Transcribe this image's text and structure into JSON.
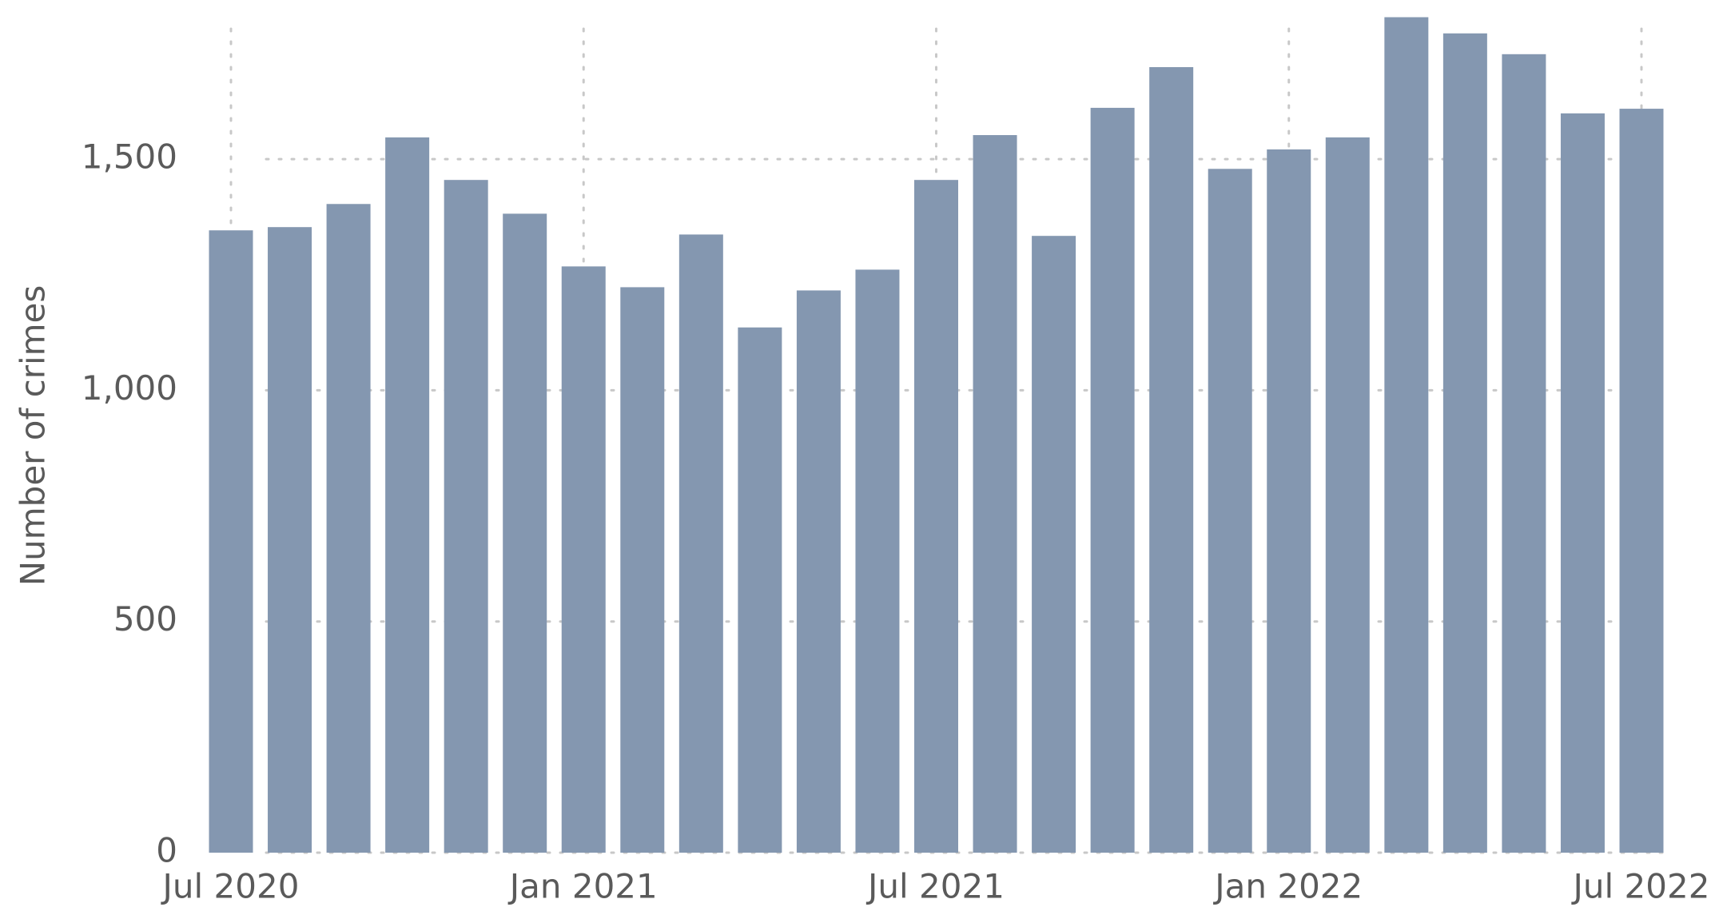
{
  "chart_data": {
    "type": "bar",
    "y_axis_label": "Number of crimes",
    "categories": [
      "Jul 2020",
      null,
      null,
      null,
      null,
      null,
      "Jan 2021",
      null,
      null,
      null,
      null,
      null,
      "Jul 2021",
      null,
      null,
      null,
      null,
      null,
      "Jan 2022",
      null,
      null,
      null,
      null,
      null,
      "Jul 2022"
    ],
    "values": [
      1346,
      1353,
      1403,
      1547,
      1455,
      1382,
      1268,
      1223,
      1337,
      1136,
      1216,
      1261,
      1455,
      1552,
      1334,
      1611,
      1699,
      1479,
      1521,
      1547,
      1807,
      1772,
      1727,
      1599,
      1609
    ],
    "color": "#8497b0",
    "ylim": [
      0,
      1820
    ],
    "yticks": [
      0,
      500,
      {
        "value": 1000,
        "label": "1,000"
      },
      {
        "value": 1500,
        "label": "1,500"
      }
    ],
    "grid": true
  }
}
